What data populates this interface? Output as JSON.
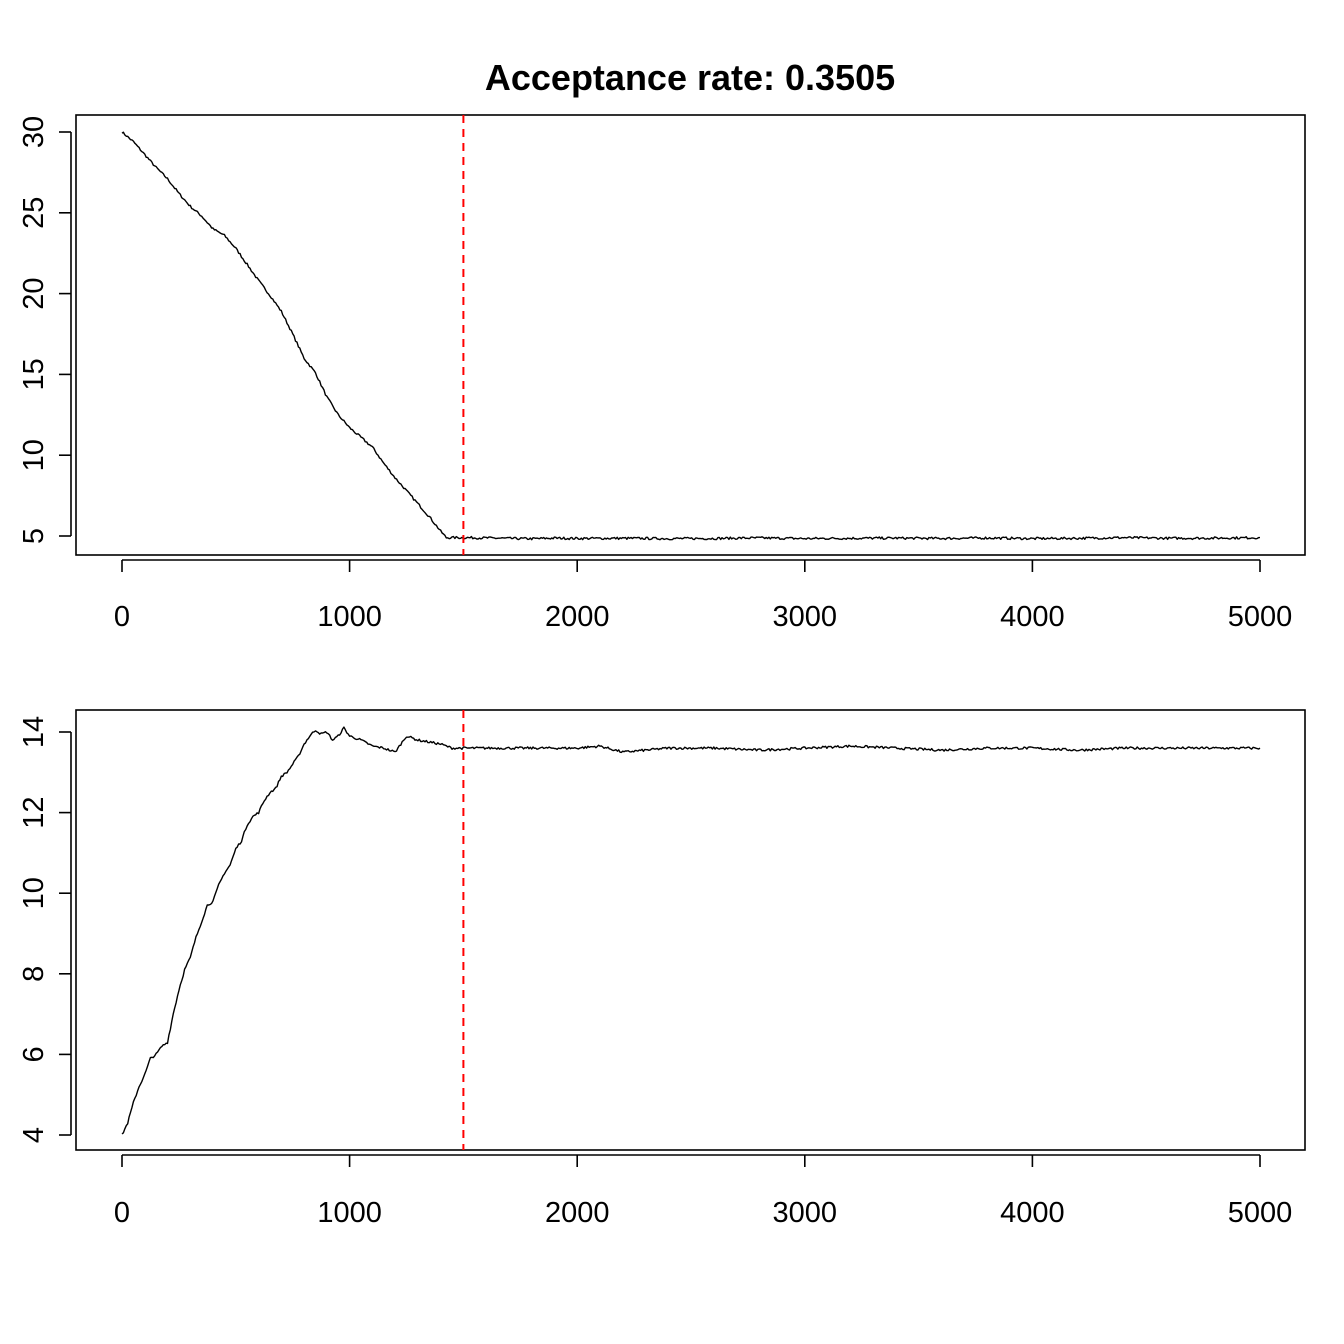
{
  "chart_data": [
    {
      "type": "line",
      "title": "Acceptance rate: 0.3505",
      "xlabel": "",
      "ylabel": "",
      "xlim": [
        0,
        5000
      ],
      "ylim": [
        5,
        30
      ],
      "xticks": [
        "0",
        "1000",
        "2000",
        "3000",
        "4000",
        "5000"
      ],
      "yticks": [
        "5",
        "10",
        "15",
        "20",
        "25",
        "30"
      ],
      "grid": false,
      "vline": {
        "x": 1500,
        "color": "#ff0000",
        "style": "dashed"
      },
      "line_color": "#000000",
      "series": [
        {
          "x": [
            0,
            50,
            100,
            150,
            200,
            250,
            300,
            350,
            400,
            450,
            500,
            550,
            600,
            650,
            700,
            750,
            800,
            850,
            900,
            950,
            1000,
            1050,
            1100,
            1150,
            1200,
            1250,
            1300,
            1350,
            1400,
            1425,
            1450,
            1500,
            1600,
            1700,
            1800,
            1900,
            2000,
            2200,
            2400,
            2600,
            2800,
            3000,
            3200,
            3400,
            3600,
            3800,
            4000,
            4200,
            4400,
            4600,
            4800,
            5000
          ],
          "y": [
            30.0,
            29.4,
            28.6,
            27.8,
            27.1,
            26.2,
            25.4,
            24.8,
            24.0,
            23.6,
            22.8,
            21.8,
            20.8,
            19.9,
            18.9,
            17.5,
            16.0,
            15.1,
            13.6,
            12.5,
            11.7,
            11.1,
            10.5,
            9.5,
            8.6,
            7.8,
            7.0,
            6.2,
            5.3,
            4.9,
            4.9,
            4.9,
            4.88,
            4.85,
            4.83,
            4.87,
            4.85,
            4.86,
            4.84,
            4.85,
            4.88,
            4.84,
            4.86,
            4.87,
            4.85,
            4.88,
            4.84,
            4.86,
            4.9,
            4.86,
            4.87,
            4.9
          ]
        }
      ]
    },
    {
      "type": "line",
      "title": "",
      "xlabel": "",
      "ylabel": "",
      "xlim": [
        0,
        5000
      ],
      "ylim": [
        4,
        14
      ],
      "xticks": [
        "0",
        "1000",
        "2000",
        "3000",
        "4000",
        "5000"
      ],
      "yticks": [
        "4",
        "6",
        "8",
        "10",
        "12",
        "14"
      ],
      "grid": false,
      "vline": {
        "x": 1500,
        "color": "#ff0000",
        "style": "dashed"
      },
      "line_color": "#000000",
      "series": [
        {
          "x": [
            0,
            25,
            50,
            75,
            100,
            125,
            150,
            175,
            200,
            225,
            250,
            275,
            300,
            325,
            350,
            375,
            400,
            425,
            450,
            475,
            500,
            525,
            550,
            575,
            600,
            625,
            650,
            675,
            700,
            725,
            750,
            775,
            800,
            825,
            850,
            875,
            900,
            925,
            950,
            975,
            1000,
            1050,
            1100,
            1150,
            1200,
            1250,
            1300,
            1350,
            1400,
            1450,
            1500,
            1600,
            1700,
            1800,
            1900,
            2000,
            2100,
            2200,
            2400,
            2600,
            2800,
            3000,
            3200,
            3400,
            3600,
            3800,
            4000,
            4200,
            4400,
            4600,
            4800,
            5000
          ],
          "y": [
            4.0,
            4.3,
            4.8,
            5.2,
            5.5,
            5.9,
            6.0,
            6.2,
            6.3,
            7.0,
            7.6,
            8.1,
            8.4,
            8.9,
            9.3,
            9.7,
            9.8,
            10.2,
            10.5,
            10.7,
            11.1,
            11.3,
            11.7,
            11.9,
            12.0,
            12.3,
            12.5,
            12.6,
            12.9,
            13.0,
            13.2,
            13.4,
            13.7,
            13.9,
            14.05,
            13.95,
            14.0,
            13.8,
            13.9,
            14.1,
            13.9,
            13.8,
            13.65,
            13.6,
            13.5,
            13.9,
            13.8,
            13.75,
            13.7,
            13.6,
            13.6,
            13.6,
            13.6,
            13.6,
            13.6,
            13.6,
            13.65,
            13.5,
            13.6,
            13.6,
            13.55,
            13.6,
            13.65,
            13.6,
            13.55,
            13.6,
            13.6,
            13.55,
            13.6,
            13.6,
            13.6,
            13.6
          ]
        }
      ]
    }
  ]
}
